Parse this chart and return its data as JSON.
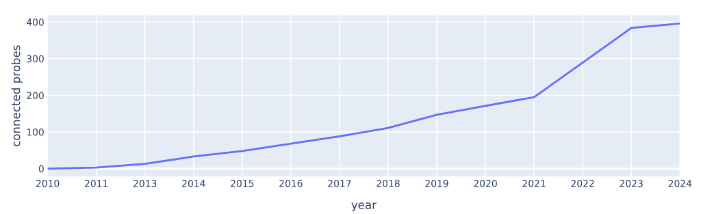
{
  "chart_data": {
    "type": "line",
    "xlabel": "year",
    "ylabel": "connected probes",
    "categories": [
      "2010",
      "2011",
      "2013",
      "2014",
      "2015",
      "2016",
      "2017",
      "2018",
      "2019",
      "2020",
      "2021",
      "2022",
      "2023",
      "2024"
    ],
    "series": [
      {
        "color": "#636efa",
        "values": [
          0,
          3,
          13,
          33,
          48,
          68,
          88,
          111,
          147,
          171,
          195,
          289,
          384,
          396
        ]
      }
    ],
    "ylim": [
      -21,
      418
    ],
    "yticks": [
      0,
      100,
      200,
      300,
      400
    ],
    "grid": true,
    "marker": "none",
    "line_style": "solid"
  }
}
